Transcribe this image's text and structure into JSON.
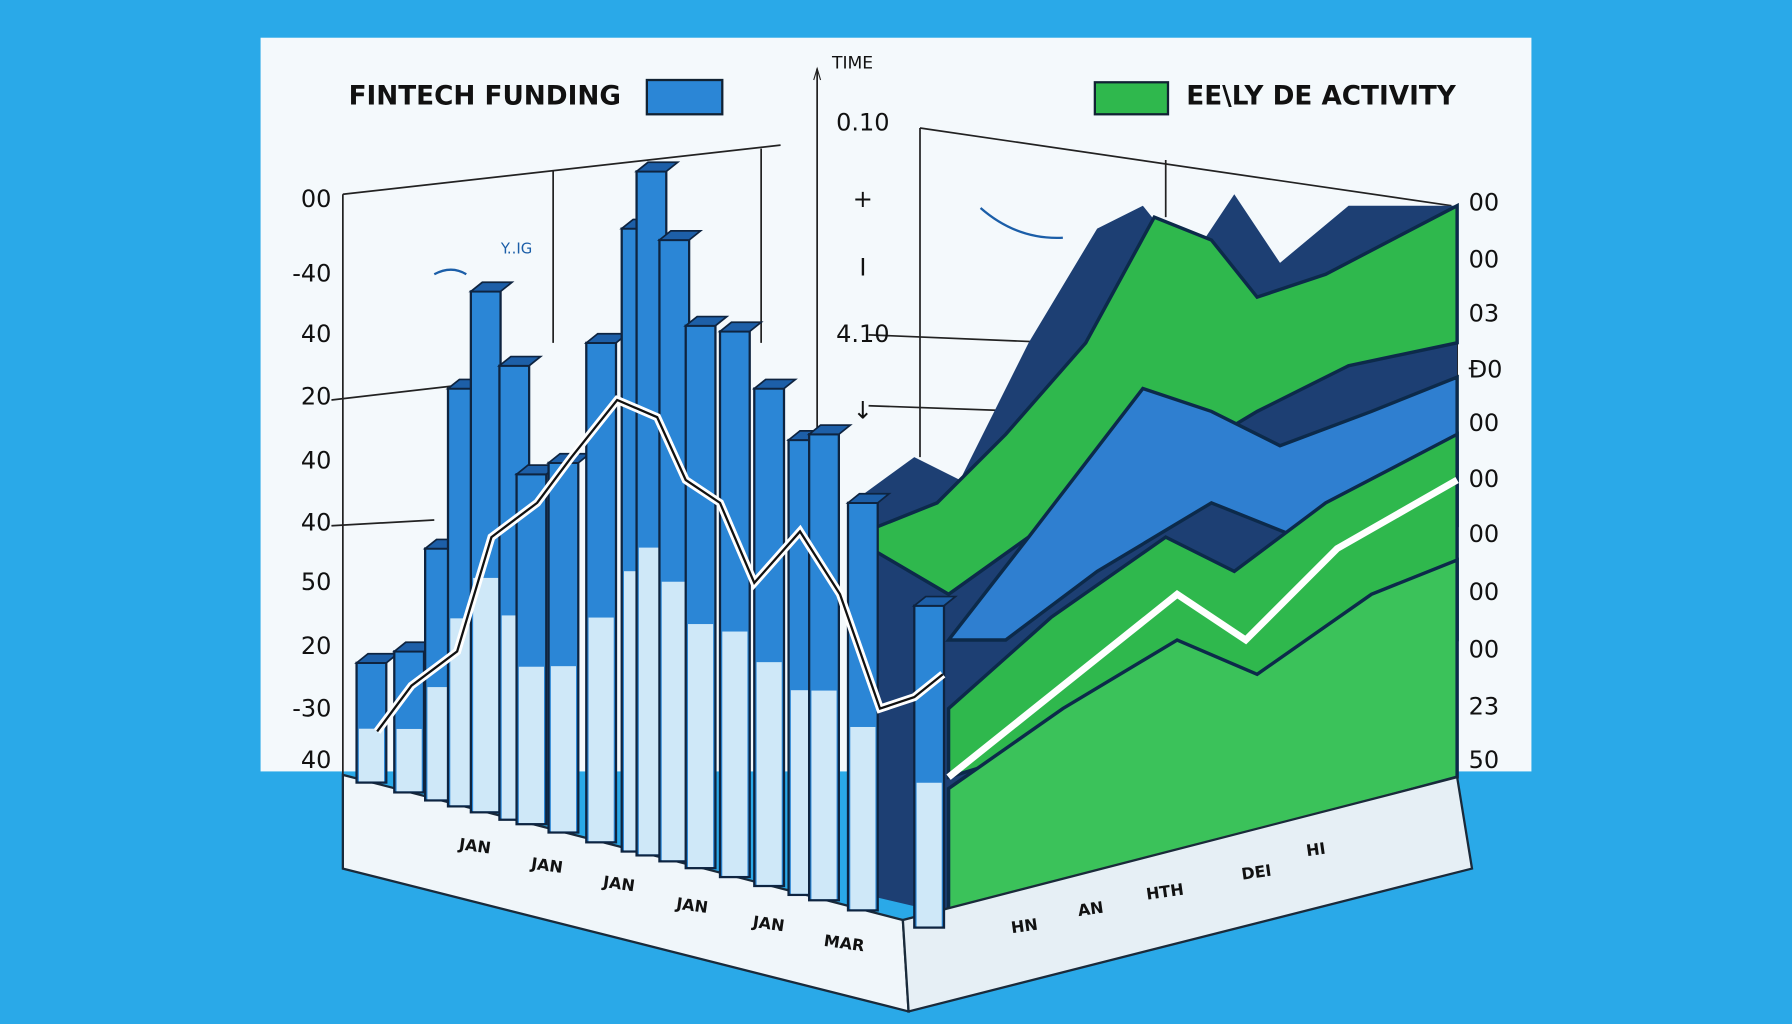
{
  "left_panel": {
    "legend": "FINTECH FUNDING",
    "annotation": "Y..IG",
    "y_labels": [
      "00",
      "-40",
      "40",
      "20",
      "40",
      "40",
      "50",
      "20",
      "-30",
      "40"
    ],
    "x_labels": [
      "JAN",
      "JAN",
      "JAN",
      "JAN",
      "JAN",
      "MAR"
    ]
  },
  "center_axis": {
    "title": "TIME",
    "labels": [
      "0.10",
      "+",
      "I",
      "4.10",
      "↓"
    ]
  },
  "right_panel": {
    "legend": "EE\\LY DE ACTIVITY",
    "y_labels": [
      "00",
      "00",
      "03",
      "Ð0",
      "00",
      "00",
      "00",
      "00",
      "00",
      "23",
      "50"
    ],
    "x_labels": [
      "HN",
      "AN",
      "HTH",
      "DEI",
      "HI"
    ]
  }
}
